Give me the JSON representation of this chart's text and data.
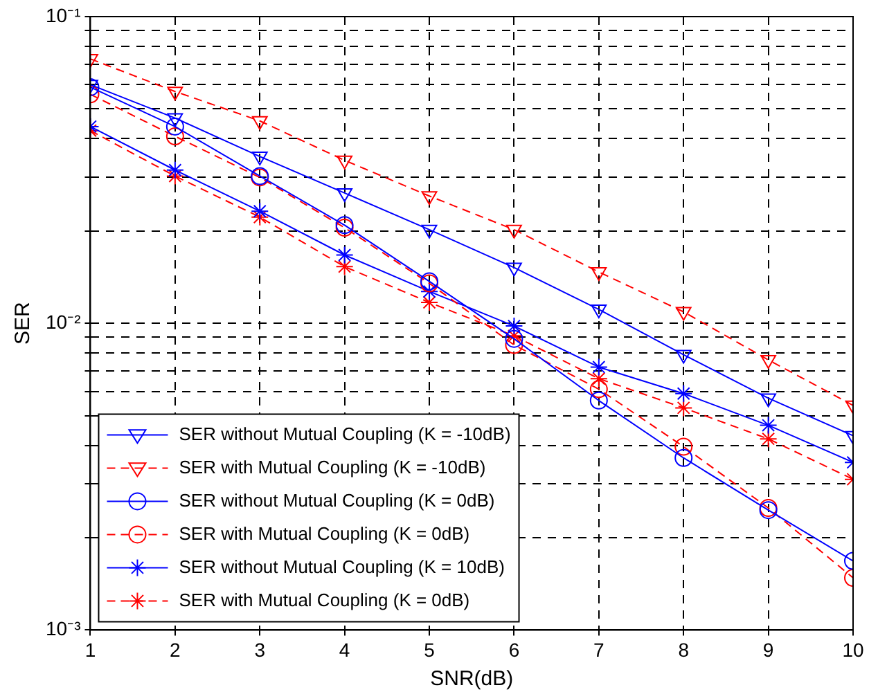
{
  "chart_data": {
    "type": "line",
    "xlabel": "SNR(dB)",
    "ylabel": "SER",
    "x": [
      1,
      2,
      3,
      4,
      5,
      6,
      7,
      8,
      9,
      10
    ],
    "xlim": [
      1,
      10
    ],
    "xticks": [
      1,
      2,
      3,
      4,
      5,
      6,
      7,
      8,
      9,
      10
    ],
    "ylim": [
      0.001,
      0.1
    ],
    "log": "y",
    "grid": true,
    "legend": "bottom left",
    "yticks": [
      {
        "value": 0.001,
        "label": "10⁻³"
      },
      {
        "value": 0.002,
        "label": null
      },
      {
        "value": 0.003,
        "label": null
      },
      {
        "value": 0.004,
        "label": null
      },
      {
        "value": 0.005,
        "label": null
      },
      {
        "value": 0.006,
        "label": null
      },
      {
        "value": 0.007,
        "label": null
      },
      {
        "value": 0.008,
        "label": null
      },
      {
        "value": 0.009,
        "label": null
      },
      {
        "value": 0.01,
        "label": "10⁻²"
      },
      {
        "value": 0.02,
        "label": null
      },
      {
        "value": 0.03,
        "label": null
      },
      {
        "value": 0.04,
        "label": null
      },
      {
        "value": 0.05,
        "label": null
      },
      {
        "value": 0.06,
        "label": null
      },
      {
        "value": 0.07,
        "label": null
      },
      {
        "value": 0.08,
        "label": null
      },
      {
        "value": 0.09,
        "label": null
      },
      {
        "value": 0.1,
        "label": "10⁻¹"
      }
    ],
    "series": [
      {
        "name": "SER without Mutual Coupling (K = -10dB)",
        "color": "#0000ff",
        "marker": "triangle",
        "line_style": "solid",
        "values": [
          0.06,
          0.0467,
          0.035,
          0.0266,
          0.0202,
          0.0152,
          0.0111,
          0.0079,
          0.0057,
          0.0043
        ]
      },
      {
        "name": "SER with Mutual Coupling (K = -10dB)",
        "color": "#ff0000",
        "marker": "triangle",
        "line_style": "dashed",
        "values": [
          0.0728,
          0.057,
          0.0457,
          0.034,
          0.026,
          0.0202,
          0.0147,
          0.0109,
          0.0076,
          0.0054
        ]
      },
      {
        "name": "SER without Mutual Coupling (K = 0dB)",
        "color": "#0000ff",
        "marker": "circle",
        "line_style": "solid",
        "values": [
          0.0589,
          0.0438,
          0.0302,
          0.0209,
          0.0137,
          0.0089,
          0.0056,
          0.00364,
          0.00246,
          0.00168
        ]
      },
      {
        "name": "SER with Mutual Coupling (K = 0dB)",
        "color": "#ff0000",
        "marker": "circle",
        "line_style": "dashed",
        "values": [
          0.0558,
          0.0407,
          0.0299,
          0.0205,
          0.0135,
          0.0085,
          0.0061,
          0.00396,
          0.0025,
          0.00148
        ]
      },
      {
        "name": "SER without Mutual Coupling (K = 10dB)",
        "color": "#0000ff",
        "marker": "cross",
        "line_style": "solid",
        "values": [
          0.0438,
          0.0316,
          0.0232,
          0.0167,
          0.0127,
          0.0098,
          0.0072,
          0.0059,
          0.00465,
          0.00352
        ]
      },
      {
        "name": "SER with Mutual Coupling (K = 0dB)",
        "color": "#ff0000",
        "marker": "cross",
        "line_style": "dashed",
        "values": [
          0.0425,
          0.0302,
          0.0222,
          0.0153,
          0.0117,
          0.0091,
          0.0066,
          0.0053,
          0.0042,
          0.0031
        ]
      }
    ]
  }
}
